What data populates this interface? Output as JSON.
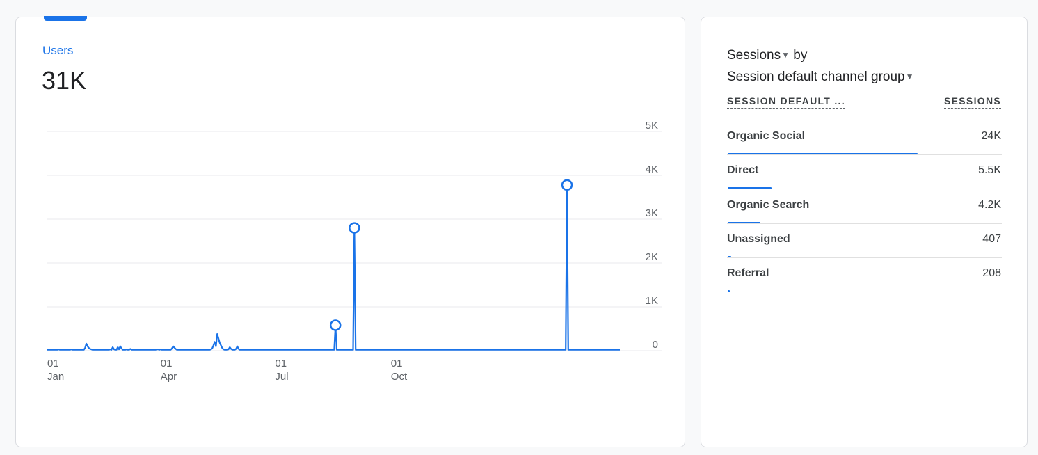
{
  "users_card": {
    "metric_label": "Users",
    "metric_value": "31K"
  },
  "chart_data": {
    "type": "line",
    "title": "",
    "xlabel": "",
    "ylabel": "",
    "series": [
      {
        "name": "Users",
        "color": "#1a73e8",
        "values": [
          20,
          20,
          20,
          20,
          20,
          20,
          20,
          20,
          20,
          30,
          20,
          20,
          20,
          20,
          20,
          20,
          20,
          20,
          20,
          30,
          20,
          20,
          20,
          20,
          20,
          20,
          20,
          20,
          20,
          20,
          60,
          160,
          100,
          60,
          40,
          30,
          20,
          20,
          20,
          20,
          20,
          20,
          20,
          20,
          20,
          20,
          20,
          20,
          20,
          20,
          30,
          20,
          80,
          30,
          20,
          20,
          80,
          30,
          100,
          50,
          20,
          20,
          20,
          30,
          20,
          20,
          40,
          20,
          20,
          20,
          20,
          20,
          20,
          20,
          20,
          20,
          20,
          20,
          20,
          20,
          20,
          20,
          20,
          20,
          20,
          20,
          20,
          30,
          30,
          20,
          30,
          20,
          20,
          20,
          20,
          20,
          20,
          20,
          20,
          50,
          100,
          70,
          40,
          20,
          20,
          20,
          20,
          20,
          20,
          20,
          20,
          20,
          20,
          20,
          20,
          20,
          20,
          20,
          20,
          20,
          20,
          20,
          20,
          20,
          20,
          20,
          20,
          20,
          20,
          20,
          30,
          50,
          120,
          200,
          100,
          380,
          280,
          180,
          120,
          60,
          30,
          20,
          20,
          20,
          30,
          80,
          40,
          20,
          20,
          20,
          40,
          100,
          40,
          20,
          20,
          20,
          20,
          20,
          20,
          20,
          20,
          20,
          20,
          20,
          20,
          20,
          20,
          20,
          20,
          20,
          20,
          20,
          20,
          20,
          20,
          20,
          20,
          20,
          20,
          20,
          20,
          20,
          20,
          20,
          20,
          20,
          20,
          20,
          20,
          20,
          20,
          20,
          20,
          20,
          20,
          20,
          20,
          20,
          20,
          20,
          20,
          20,
          20,
          20,
          20,
          20,
          20,
          20,
          20,
          20,
          20,
          20,
          20,
          20,
          20,
          20,
          20,
          20,
          20,
          20,
          20,
          20,
          20,
          20,
          20,
          20,
          20,
          20,
          20,
          20,
          20,
          20,
          20,
          20,
          20,
          20,
          20,
          20,
          20,
          20,
          20,
          20,
          20,
          20,
          20,
          20,
          20,
          20,
          20,
          20,
          20,
          20,
          20,
          20,
          20,
          20,
          20,
          20,
          20,
          20,
          20,
          20,
          20,
          20,
          20,
          20,
          20,
          20,
          20,
          20,
          20,
          20,
          20,
          20,
          20,
          20,
          20,
          20,
          20,
          20,
          20,
          20,
          20,
          20,
          20,
          20,
          20,
          20,
          20,
          20,
          20,
          20,
          20,
          20,
          20,
          20,
          20,
          20,
          20,
          20,
          20,
          20,
          20,
          20,
          20,
          20,
          20,
          20,
          20,
          20,
          20,
          20,
          20,
          20,
          20,
          20,
          20,
          20,
          20,
          20,
          20,
          20,
          20,
          20,
          20,
          20,
          20,
          20,
          20,
          20,
          20,
          20,
          20,
          20,
          20,
          20,
          20,
          20,
          20,
          20,
          20,
          20,
          20,
          20,
          20,
          20,
          20,
          20,
          20,
          20,
          20,
          20,
          20,
          20,
          20,
          20,
          20,
          20,
          20,
          20,
          20,
          20,
          20,
          20,
          20,
          20,
          20,
          20,
          20,
          20,
          20,
          20,
          20,
          20,
          20,
          20,
          20,
          20,
          20,
          20,
          20,
          20,
          20,
          20,
          20,
          20,
          20,
          20,
          20,
          20,
          20,
          20,
          20,
          20,
          20,
          20,
          20,
          20,
          20,
          20
        ]
      }
    ],
    "markers": [
      {
        "index": 229,
        "value": 580
      },
      {
        "index": 244,
        "value": 2800
      },
      {
        "index": 413,
        "value": 3780
      }
    ],
    "xticks": [
      {
        "index": 0,
        "day": "01",
        "month": "Jan"
      },
      {
        "index": 90,
        "day": "01",
        "month": "Apr"
      },
      {
        "index": 181,
        "day": "01",
        "month": "Jul"
      },
      {
        "index": 273,
        "day": "01",
        "month": "Oct"
      }
    ],
    "yticks": [
      0,
      1000,
      2000,
      3000,
      4000,
      5000
    ],
    "ytick_labels": [
      "0",
      "1K",
      "2K",
      "3K",
      "4K",
      "5K"
    ],
    "ylim": [
      0,
      5000
    ],
    "x_count": 456,
    "grid": true
  },
  "sessions_card": {
    "title_metric": "Sessions",
    "title_by": " by",
    "title_dimension": "Session default channel group",
    "caret_glyph": "▼",
    "col_dimension": "SESSION DEFAULT ...",
    "col_metric": "SESSIONS",
    "rows": [
      {
        "name": "Organic Social",
        "value": "24K",
        "share": 0.69
      },
      {
        "name": "Direct",
        "value": "5.5K",
        "share": 0.16
      },
      {
        "name": "Organic Search",
        "value": "4.2K",
        "share": 0.12
      },
      {
        "name": "Unassigned",
        "value": "407",
        "share": 0.012
      },
      {
        "name": "Referral",
        "value": "208",
        "share": 0.006
      }
    ]
  }
}
